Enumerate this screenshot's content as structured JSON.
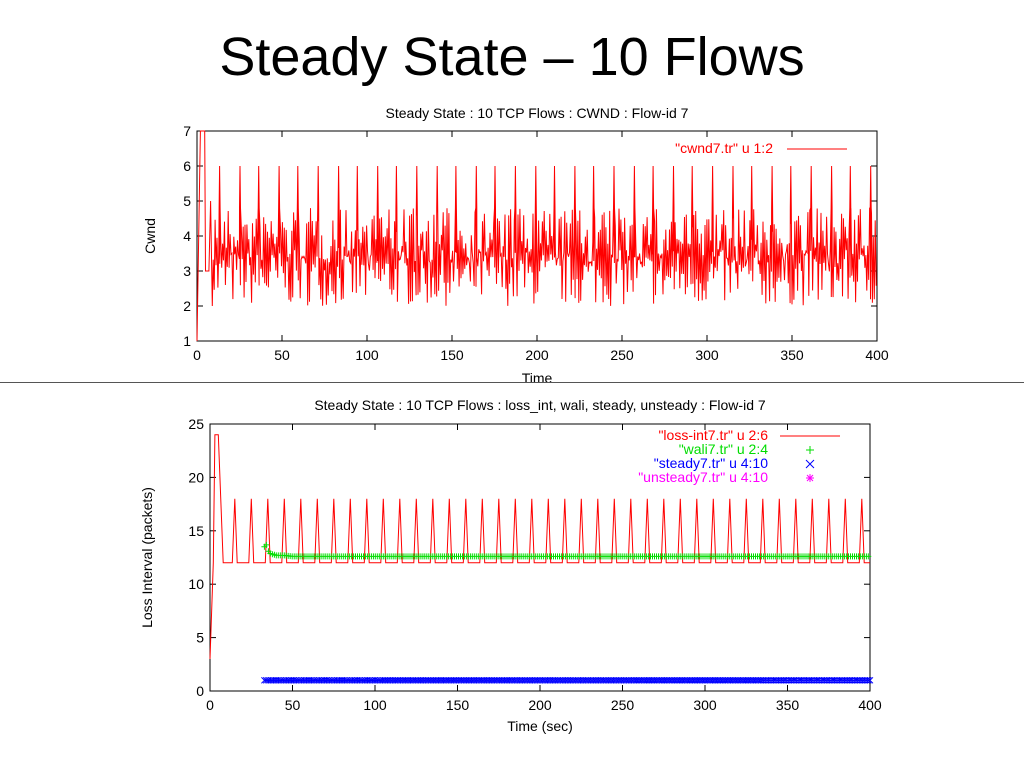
{
  "slide": {
    "title": "Steady State – 10 Flows"
  },
  "chart_data": [
    {
      "type": "line",
      "title": "Steady State : 10 TCP Flows : CWND : Flow-id 7",
      "xlabel": "Time",
      "ylabel": "Cwnd",
      "xlim": [
        0,
        400
      ],
      "ylim": [
        1,
        7
      ],
      "xticks": [
        0,
        50,
        100,
        150,
        200,
        250,
        300,
        350,
        400
      ],
      "yticks": [
        1,
        2,
        3,
        4,
        5,
        6,
        7
      ],
      "grid": false,
      "legend_position": "top-right",
      "series": [
        {
          "name": "\"cwnd7.tr\" u 1:2",
          "color": "#ff0000",
          "style": "line",
          "description_values": {
            "startup_points": [
              [
                0,
                1
              ],
              [
                1,
                4
              ],
              [
                2,
                7
              ],
              [
                4.5,
                7
              ],
              [
                5,
                3
              ],
              [
                7,
                3
              ],
              [
                8,
                5
              ]
            ],
            "band_min": 2,
            "band_max": 4.8,
            "spike_value": 6,
            "spike_x": [
              13,
              25,
              36,
              48,
              59,
              71,
              83,
              94,
              106,
              117,
              129,
              141,
              152,
              164,
              175,
              187,
              199,
              210,
              222,
              233,
              245,
              257,
              268,
              280,
              291,
              303,
              315,
              326,
              338,
              349,
              361,
              373,
              384,
              396
            ]
          }
        }
      ]
    },
    {
      "type": "line",
      "title": "Steady State : 10 TCP Flows : loss_int, wali, steady, unsteady : Flow-id 7",
      "xlabel": "Time (sec)",
      "ylabel": "Loss Interval (packets)",
      "xlim": [
        0,
        400
      ],
      "ylim": [
        0,
        25
      ],
      "xticks": [
        0,
        50,
        100,
        150,
        200,
        250,
        300,
        350,
        400
      ],
      "yticks": [
        0,
        5,
        10,
        15,
        20,
        25
      ],
      "grid": false,
      "legend_position": "top-right",
      "series": [
        {
          "name": "\"loss-int7.tr\" u 2:6",
          "color": "#ff0000",
          "style": "line",
          "description_values": {
            "startup_points": [
              [
                0,
                3
              ],
              [
                2,
                12
              ],
              [
                3,
                24
              ],
              [
                5,
                24
              ],
              [
                8,
                12
              ]
            ],
            "base": 12,
            "peak": 18,
            "spike_x": [
              15,
              25,
              35,
              45,
              55,
              65,
              75,
              85,
              95,
              105,
              115,
              125,
              135,
              145,
              155,
              165,
              175,
              185,
              195,
              205,
              215,
              225,
              235,
              245,
              255,
              265,
              275,
              285,
              295,
              305,
              315,
              325,
              335,
              345,
              355,
              365,
              375,
              385,
              395
            ]
          }
        },
        {
          "name": "\"wali7.tr\" u 2:4",
          "color": "#00dd00",
          "style": "plus",
          "x": [
            33,
            34,
            35,
            36,
            38,
            40,
            45,
            50,
            60,
            70,
            80,
            100,
            120,
            150,
            200,
            250,
            300,
            350,
            400
          ],
          "values": [
            13.5,
            13.8,
            13.2,
            12.9,
            12.8,
            12.7,
            12.7,
            12.6,
            12.6,
            12.6,
            12.6,
            12.6,
            12.6,
            12.6,
            12.6,
            12.6,
            12.6,
            12.6,
            12.6
          ]
        },
        {
          "name": "\"steady7.tr\" u 4:10",
          "color": "#0000ff",
          "style": "cross",
          "x_range": [
            33,
            400
          ],
          "value": 1
        },
        {
          "name": "\"unsteady7.tr\" u 4:10",
          "color": "#ff00ff",
          "style": "star",
          "x": [],
          "values": []
        }
      ]
    }
  ]
}
